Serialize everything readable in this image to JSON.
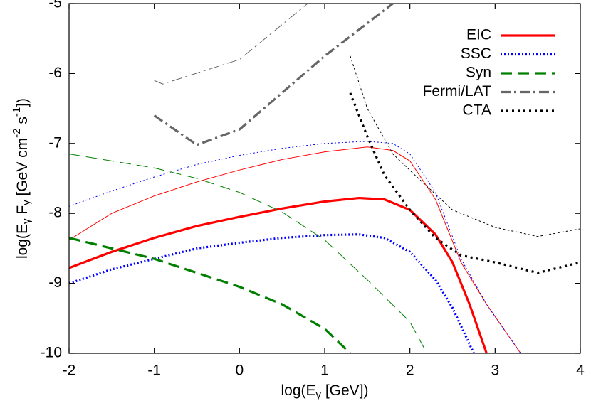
{
  "chart_data": {
    "type": "line",
    "xlabel": [
      "log(E",
      "γ",
      " [GeV])"
    ],
    "ylabel": [
      "log(E",
      "γ",
      " F",
      "γ",
      " [GeV cm",
      "-2",
      " s",
      "-1",
      "])"
    ],
    "xlim": [
      -2,
      4
    ],
    "ylim": [
      -10,
      -5
    ],
    "xticks": [
      -2,
      -1,
      0,
      1,
      2,
      3,
      4
    ],
    "yticks": [
      -10,
      -9,
      -8,
      -7,
      -6,
      -5
    ],
    "legend": "upper right",
    "series": [
      {
        "name": "EIC",
        "color": "#ff0000",
        "lines": [
          {
            "x": [
              -2,
              -1.5,
              -1,
              -0.5,
              0,
              0.5,
              1,
              1.4,
              1.7,
              2,
              2.3,
              2.5,
              2.7,
              2.9
            ],
            "values": [
              -8.78,
              -8.55,
              -8.35,
              -8.18,
              -8.05,
              -7.93,
              -7.83,
              -7.78,
              -7.8,
              -7.95,
              -8.3,
              -8.7,
              -9.3,
              -10
            ]
          },
          {
            "x": [
              -2,
              -1.5,
              -1,
              -0.5,
              0,
              0.5,
              1,
              1.5,
              1.8,
              2,
              2.3,
              2.6,
              2.9,
              3.3
            ],
            "values": [
              -8.38,
              -8.0,
              -7.75,
              -7.55,
              -7.38,
              -7.23,
              -7.12,
              -7.05,
              -7.1,
              -7.25,
              -7.8,
              -8.7,
              -9.3,
              -10
            ]
          }
        ]
      },
      {
        "name": "SSC",
        "color": "#0000ff",
        "lines": [
          {
            "x": [
              -2,
              -1.5,
              -1,
              -0.5,
              0,
              0.5,
              1,
              1.4,
              1.7,
              2,
              2.3,
              2.5,
              2.75
            ],
            "values": [
              -9.0,
              -8.8,
              -8.65,
              -8.5,
              -8.42,
              -8.35,
              -8.31,
              -8.3,
              -8.35,
              -8.55,
              -8.95,
              -9.35,
              -10
            ]
          },
          {
            "x": [
              -2,
              -1.5,
              -1,
              -0.5,
              0,
              0.5,
              1,
              1.5,
              1.8,
              2,
              2.3,
              2.6,
              2.9,
              3.3
            ],
            "values": [
              -7.9,
              -7.68,
              -7.48,
              -7.3,
              -7.17,
              -7.07,
              -7.0,
              -6.97,
              -7.0,
              -7.15,
              -7.7,
              -8.65,
              -9.3,
              -10
            ]
          }
        ]
      },
      {
        "name": "Syn",
        "color": "#008000",
        "lines": [
          {
            "x": [
              -2,
              -1.5,
              -1,
              -0.5,
              0,
              0.5,
              1,
              1.3
            ],
            "values": [
              -8.35,
              -8.5,
              -8.65,
              -8.85,
              -9.05,
              -9.3,
              -9.65,
              -10
            ]
          },
          {
            "x": [
              -2,
              -1.5,
              -1,
              -0.5,
              0,
              0.5,
              1,
              1.5,
              2,
              2.2
            ],
            "values": [
              -7.15,
              -7.25,
              -7.35,
              -7.5,
              -7.7,
              -7.98,
              -8.38,
              -8.95,
              -9.55,
              -10
            ]
          }
        ]
      },
      {
        "name": "Fermi/LAT",
        "color": "#666666",
        "lines": [
          {
            "x": [
              -1,
              -0.5,
              0,
              1,
              1.8
            ],
            "values": [
              -6.6,
              -7.02,
              -6.8,
              -5.75,
              -5.0
            ]
          },
          {
            "x": [
              -1,
              -0.9,
              0,
              0.8
            ],
            "values": [
              -6.1,
              -6.15,
              -5.8,
              -5.0
            ]
          }
        ]
      },
      {
        "name": "CTA",
        "color": "#000000",
        "lines": [
          {
            "x": [
              1.3,
              1.5,
              1.7,
              2,
              2.3,
              2.6,
              3,
              3.5,
              4
            ],
            "values": [
              -6.28,
              -6.9,
              -7.45,
              -7.95,
              -8.35,
              -8.6,
              -8.7,
              -8.85,
              -8.7
            ]
          },
          {
            "x": [
              1.3,
              1.5,
              1.8,
              2.1,
              2.5,
              3,
              3.5,
              4
            ],
            "values": [
              -5.75,
              -6.5,
              -7.15,
              -7.5,
              -7.95,
              -8.2,
              -8.33,
              -8.22
            ]
          }
        ]
      }
    ]
  }
}
